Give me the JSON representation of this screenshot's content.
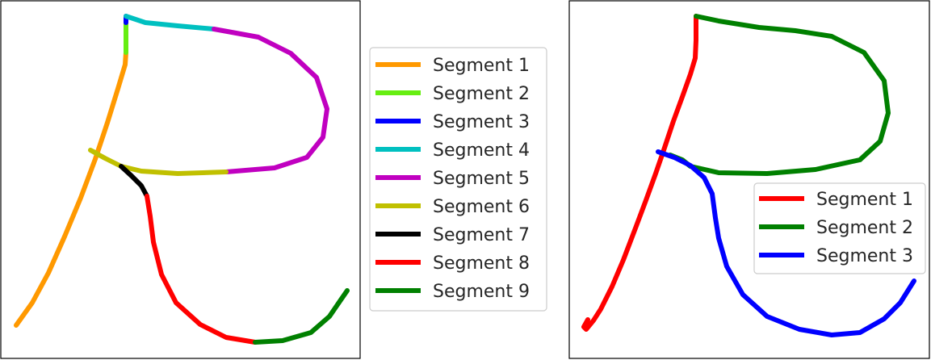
{
  "chart_data": [
    {
      "type": "line",
      "panel": "left",
      "title": "",
      "xlabel": "",
      "ylabel": "",
      "grid": false,
      "legend_placement": "outside-right",
      "series": [
        {
          "name": "Segment 1",
          "color": "#ff9900",
          "points": [
            [
              20,
              403
            ],
            [
              40,
              375
            ],
            [
              60,
              338
            ],
            [
              80,
              293
            ],
            [
              100,
              245
            ],
            [
              118,
              197
            ],
            [
              133,
              152
            ],
            [
              146,
              110
            ],
            [
              155,
              80
            ],
            [
              156,
              65
            ]
          ]
        },
        {
          "name": "Segment 2",
          "color": "#66ee11",
          "points": [
            [
              156,
              65
            ],
            [
              156,
              45
            ],
            [
              156,
              28
            ]
          ]
        },
        {
          "name": "Segment 3",
          "color": "#0000ff",
          "points": [
            [
              156,
              28
            ],
            [
              156,
              20
            ]
          ]
        },
        {
          "name": "Segment 4",
          "color": "#00c0c0",
          "points": [
            [
              156,
              20
            ],
            [
              180,
              28
            ],
            [
              220,
              32
            ],
            [
              265,
              36
            ]
          ]
        },
        {
          "name": "Segment 5",
          "color": "#c000c0",
          "points": [
            [
              265,
              36
            ],
            [
              320,
              46
            ],
            [
              360,
              66
            ],
            [
              392,
              96
            ],
            [
              405,
              135
            ],
            [
              400,
              170
            ],
            [
              380,
              195
            ],
            [
              340,
              208
            ],
            [
              280,
              213
            ]
          ]
        },
        {
          "name": "Segment 6",
          "color": "#c0c000",
          "points": [
            [
              280,
              213
            ],
            [
              220,
              215
            ],
            [
              175,
              212
            ],
            [
              150,
              206
            ],
            [
              130,
              196
            ],
            [
              112,
              186
            ],
            [
              120,
              190
            ]
          ]
        },
        {
          "name": "Segment 7",
          "color": "#000000",
          "points": [
            [
              150,
              206
            ],
            [
              163,
              218
            ],
            [
              175,
              230
            ],
            [
              182,
              243
            ]
          ]
        },
        {
          "name": "Segment 8",
          "color": "#ff0000",
          "points": [
            [
              182,
              243
            ],
            [
              186,
              268
            ],
            [
              190,
              300
            ],
            [
              200,
              340
            ],
            [
              218,
              375
            ],
            [
              248,
              402
            ],
            [
              280,
              418
            ],
            [
              316,
              424
            ]
          ]
        },
        {
          "name": "Segment 9",
          "color": "#008000",
          "points": [
            [
              316,
              424
            ],
            [
              350,
              422
            ],
            [
              385,
              412
            ],
            [
              408,
              392
            ],
            [
              421,
              373
            ],
            [
              430,
              360
            ]
          ]
        }
      ]
    },
    {
      "type": "line",
      "panel": "right",
      "title": "",
      "xlabel": "",
      "ylabel": "",
      "grid": false,
      "legend_placement": "right",
      "series": [
        {
          "name": "Segment 1",
          "color": "#ff0000",
          "points": [
            [
              862,
              20
            ],
            [
              862,
              50
            ],
            [
              861,
              72
            ],
            [
              855,
              92
            ],
            [
              845,
              120
            ],
            [
              834,
              150
            ],
            [
              822,
              186
            ],
            [
              812,
              215
            ],
            [
              800,
              248
            ],
            [
              788,
              280
            ],
            [
              772,
              322
            ],
            [
              758,
              355
            ],
            [
              744,
              383
            ],
            [
              735,
              397
            ],
            [
              726,
              408
            ],
            [
              723,
              405
            ],
            [
              728,
              396
            ]
          ]
        },
        {
          "name": "Segment 2",
          "color": "#008000",
          "points": [
            [
              862,
              20
            ],
            [
              890,
              26
            ],
            [
              940,
              34
            ],
            [
              985,
              38
            ],
            [
              1030,
              45
            ],
            [
              1070,
              65
            ],
            [
              1095,
              100
            ],
            [
              1100,
              140
            ],
            [
              1090,
              175
            ],
            [
              1065,
              198
            ],
            [
              1010,
              210
            ],
            [
              950,
              215
            ],
            [
              890,
              214
            ],
            [
              855,
              206
            ],
            [
              845,
              198
            ],
            [
              830,
              192
            ]
          ]
        },
        {
          "name": "Segment 3",
          "color": "#0000ff",
          "points": [
            [
              815,
              188
            ],
            [
              835,
              195
            ],
            [
              855,
              205
            ],
            [
              872,
              220
            ],
            [
              882,
              240
            ],
            [
              886,
              270
            ],
            [
              890,
              295
            ],
            [
              900,
              330
            ],
            [
              920,
              365
            ],
            [
              950,
              392
            ],
            [
              990,
              408
            ],
            [
              1030,
              415
            ],
            [
              1065,
              412
            ],
            [
              1095,
              395
            ],
            [
              1115,
              375
            ],
            [
              1132,
              348
            ]
          ]
        }
      ]
    }
  ]
}
